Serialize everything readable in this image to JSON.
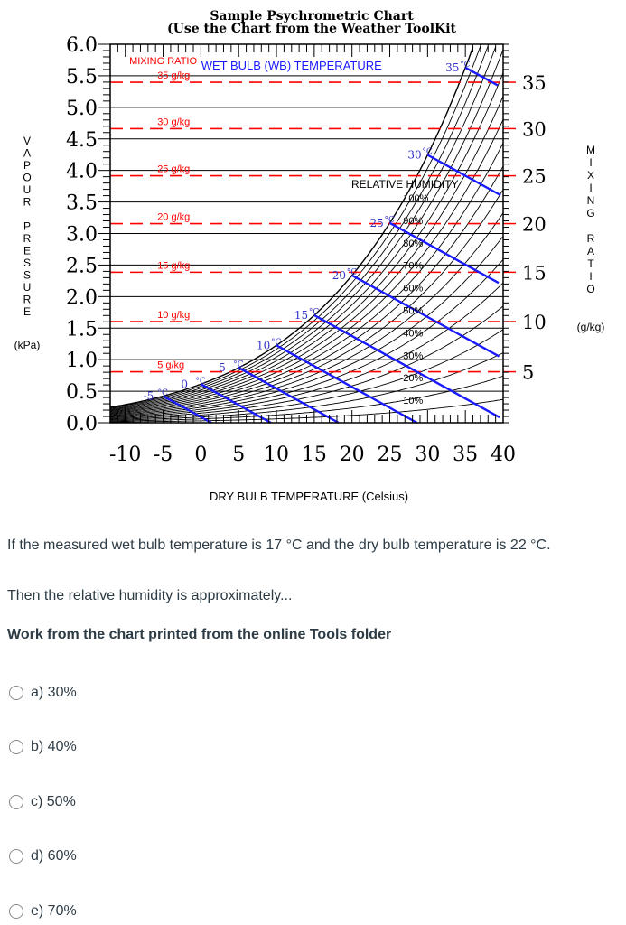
{
  "chart_data": {
    "type": "line",
    "title": "Sample Psychrometric Chart",
    "subtitle": "(Use the Chart from the Weather ToolKit",
    "xlabel": "DRY BULB TEMPERATURE (Celsius)",
    "ylabel_left": "VAPOUR PRESSURE",
    "ylabel_left_unit": "(kPa)",
    "ylabel_right": "MIXING RATIO",
    "ylabel_right_unit": "(g/kg)",
    "xlim": [
      -12,
      40
    ],
    "ylim": [
      0,
      6
    ],
    "x_ticks": [
      "-10",
      "-5",
      "0",
      "5",
      "10",
      "15",
      "20",
      "25",
      "30",
      "35",
      "40"
    ],
    "x_tick_values": [
      -10,
      -5,
      0,
      5,
      10,
      15,
      20,
      25,
      30,
      35,
      40
    ],
    "y_ticks": [
      "0.0",
      "0.5",
      "1.0",
      "1.5",
      "2.0",
      "2.5",
      "3.0",
      "3.5",
      "4.0",
      "4.5",
      "5.0",
      "5.5",
      "6.0"
    ],
    "y_tick_values": [
      0,
      0.5,
      1.0,
      1.5,
      2.0,
      2.5,
      3.0,
      3.5,
      4.0,
      4.5,
      5.0,
      5.5,
      6.0
    ],
    "mixing_ratio_ticks": [
      "5",
      "10",
      "15",
      "20",
      "25",
      "30",
      "35"
    ],
    "mixing_ratio_values": [
      5,
      10,
      15,
      20,
      25,
      30,
      35
    ],
    "mixing_ratio_labels": [
      "5 g/kg",
      "10 g/kg",
      "15 g/kg",
      "20 g/kg",
      "25 g/kg",
      "30 g/kg",
      "35 g/kg"
    ],
    "mixing_ratio_header": "MIXING RATIO",
    "wet_bulb_header": "WET BULB (WB) TEMPERATURE",
    "rh_header": "RELATIVE HUMIDITY",
    "wet_bulb_labels": [
      "-5",
      "0",
      "5",
      "10",
      "15",
      "20",
      "25",
      "30",
      "35"
    ],
    "wet_bulb_values": [
      -5,
      0,
      5,
      10,
      15,
      20,
      25,
      30,
      35
    ],
    "rh_labels": [
      "100%",
      "90%",
      "80%",
      "70%",
      "60%",
      "50%",
      "40%",
      "30%",
      "20%",
      "10%"
    ],
    "rh_values": [
      100,
      90,
      80,
      70,
      60,
      50,
      40,
      30,
      20,
      10
    ],
    "grid": true,
    "colors": {
      "curves": "#000000",
      "wet_bulb": "#1a1aff",
      "mixing_ratio": "#ff0000",
      "wb_text": "#3333cc"
    }
  },
  "question": {
    "line1": "If the measured wet bulb temperature is 17 °C and the dry bulb temperature is 22 °C.",
    "line2": "Then the relative humidity is approximately...",
    "note": "Work from the chart printed from the online Tools folder"
  },
  "options": [
    {
      "label": "a) 30%"
    },
    {
      "label": "b) 40%"
    },
    {
      "label": "c) 50%"
    },
    {
      "label": "d) 60%"
    },
    {
      "label": "e) 70%"
    }
  ]
}
